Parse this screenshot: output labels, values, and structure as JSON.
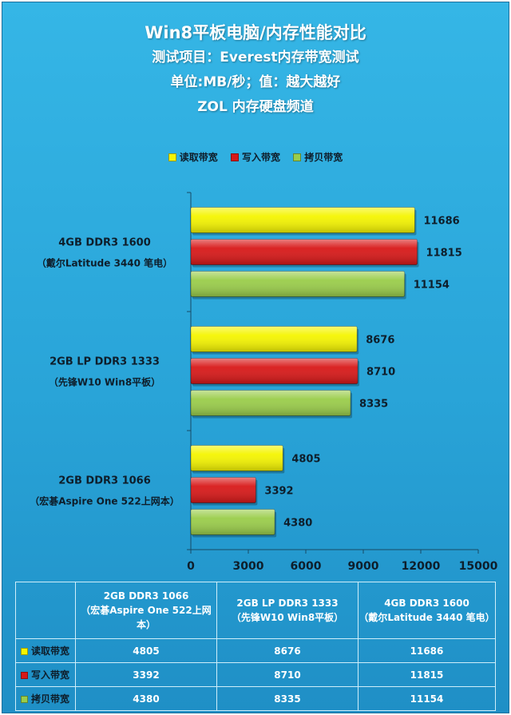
{
  "header": {
    "title": "Win8平板电脑/内存性能对比",
    "subtitle1": "测试项目：Everest内存带宽测试",
    "subtitle2": "单位:MB/秒；值：越大越好",
    "subtitle3": "ZOL 内存硬盘频道"
  },
  "colors": {
    "read": "#f5f500",
    "write": "#d81818",
    "copy": "#9acd4a",
    "background": "#2aa8dc"
  },
  "chart_data": {
    "type": "bar",
    "orientation": "horizontal",
    "legend_position": "top",
    "categories": [
      {
        "line1": "4GB DDR3 1600",
        "line2": "（戴尔Latitude 3440 笔电）"
      },
      {
        "line1": "2GB LP DDR3 1333",
        "line2": "（先锋W10 Win8平板）"
      },
      {
        "line1": "2GB DDR3 1066",
        "line2": "（宏碁Aspire One 522上网本）"
      }
    ],
    "series": [
      {
        "name": "读取带宽",
        "values": [
          11686,
          8676,
          4805
        ]
      },
      {
        "name": "写入带宽",
        "values": [
          11815,
          8710,
          3392
        ]
      },
      {
        "name": "拷贝带宽",
        "values": [
          11154,
          8335,
          4380
        ]
      }
    ],
    "xlim": [
      0,
      15000
    ],
    "xticks": [
      "0",
      "3000",
      "6000",
      "9000",
      "12000",
      "15000"
    ],
    "grid": false
  },
  "legend": {
    "items": [
      "读取带宽",
      "写入带宽",
      "拷贝带宽"
    ]
  },
  "table": {
    "headers": [
      {
        "line1": "2GB DDR3 1066",
        "line2": "（宏碁Aspire One 522上网",
        "line3": "本）"
      },
      {
        "line1": "2GB LP DDR3 1333",
        "line2": "（先锋W10  Win8平板）",
        "line3": ""
      },
      {
        "line1": "4GB DDR3 1600",
        "line2": "（戴尔Latitude  3440 笔电）",
        "line3": ""
      }
    ],
    "rows": [
      {
        "label": "读取带宽",
        "values": [
          "4805",
          "8676",
          "11686"
        ]
      },
      {
        "label": "写入带宽",
        "values": [
          "3392",
          "8710",
          "11815"
        ]
      },
      {
        "label": "拷贝带宽",
        "values": [
          "4380",
          "8335",
          "11154"
        ]
      }
    ]
  }
}
